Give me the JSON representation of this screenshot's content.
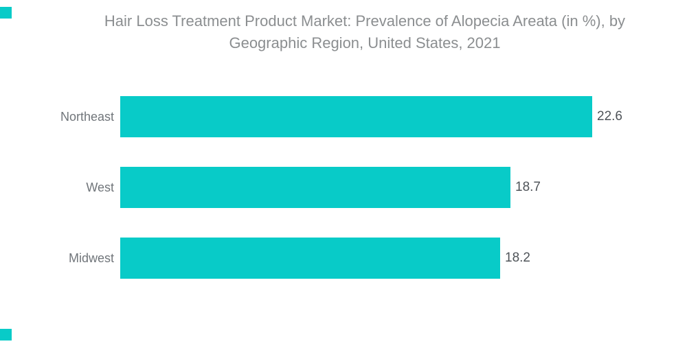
{
  "page": {
    "background": "#ffffff"
  },
  "brand": {
    "square_color": "#08cbc8",
    "squares": [
      "top-left",
      "bottom-left"
    ]
  },
  "title": {
    "line1": "Hair Loss Treatment Product Market: Prevalence of Alopecia Areata (in %), by",
    "line2": "Geographic Region, United States, 2021",
    "color": "#8b8e90"
  },
  "chart_data": {
    "type": "bar",
    "orientation": "horizontal",
    "title": "Hair Loss Treatment Product Market: Prevalence of Alopecia Areata (in %), by Geographic Region, United States, 2021",
    "categories": [
      "Northeast",
      "West",
      "Midwest"
    ],
    "values": [
      22.6,
      18.7,
      18.2
    ],
    "value_labels": [
      "22.6",
      "18.7",
      "18.2"
    ],
    "xlabel": "",
    "ylabel": "",
    "xlim": [
      0,
      23.8
    ],
    "grid": false,
    "legend": "none",
    "bar_color": "#08cbc8",
    "category_label_color": "#70757a",
    "value_label_color": "#4e5358"
  }
}
